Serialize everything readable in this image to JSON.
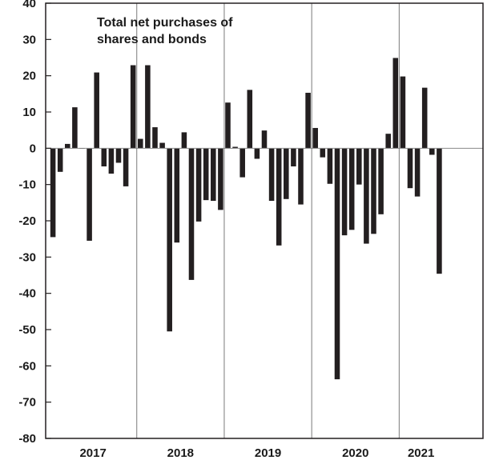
{
  "chart_data": {
    "type": "bar",
    "annotation": [
      "Total net purchases of",
      "shares and bonds"
    ],
    "title": "",
    "xlabel": "",
    "ylabel": "",
    "ylim": [
      -80,
      40
    ],
    "yticks": [
      40,
      30,
      20,
      10,
      0,
      -10,
      -20,
      -30,
      -40,
      -50,
      -60,
      -70,
      -80
    ],
    "year_labels": [
      "2017",
      "2018",
      "2019",
      "2020",
      "2021"
    ],
    "bar_color": "#231f20",
    "grid": false,
    "legend": "none",
    "values": [
      -24.5,
      -6.5,
      1.2,
      11.3,
      0,
      -25.5,
      20.9,
      -5,
      -7,
      -4,
      -10.5,
      22.9,
      2.6,
      22.9,
      5.8,
      1.5,
      -50.5,
      -26,
      4.4,
      -36.3,
      -20.2,
      -14.3,
      -14.5,
      -17,
      12.6,
      0.4,
      -8,
      16.1,
      -2.9,
      4.9,
      -14.5,
      -26.8,
      -14,
      -5,
      -15.5,
      15.3,
      5.6,
      -2.5,
      -9.8,
      -63.7,
      -24,
      -22.5,
      -10,
      -26.3,
      -23.6,
      -18.2,
      4,
      24.9,
      19.8,
      -11,
      -13.3,
      16.7,
      -1.8,
      -34.6
    ]
  }
}
